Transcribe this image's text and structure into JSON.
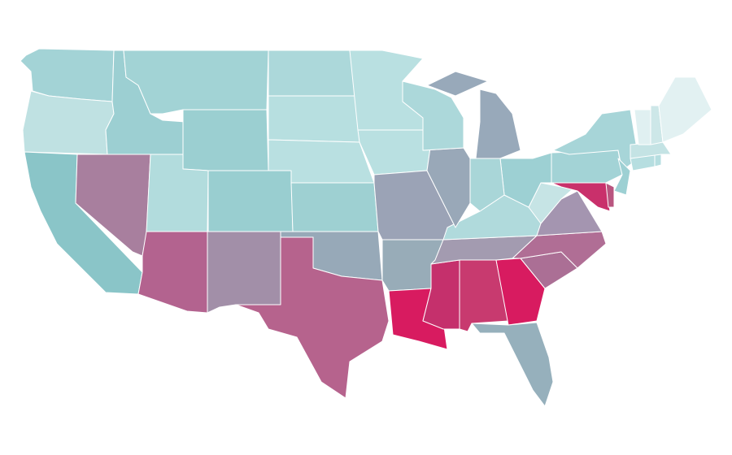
{
  "map": {
    "regions": [
      {
        "color": "#a3d3d6"
      },
      {
        "color": "#bfe1e2"
      },
      {
        "color": "#8ac5c8"
      },
      {
        "color": "#a87f9e"
      },
      {
        "color": "#9ccfd2"
      },
      {
        "color": "#a2d3d5"
      },
      {
        "color": "#9bcfd1"
      },
      {
        "color": "#b2dcdd"
      },
      {
        "color": "#b3638f"
      },
      {
        "color": "#99ced0"
      },
      {
        "color": "#a28fa8"
      },
      {
        "color": "#acd8da"
      },
      {
        "color": "#b7dfe0"
      },
      {
        "color": "#b9e0e1"
      },
      {
        "color": "#9ed0d2"
      },
      {
        "color": "#97a9b8"
      },
      {
        "color": "#b6638d"
      },
      {
        "color": "#b9e0e1"
      },
      {
        "color": "#b9e0e1"
      },
      {
        "color": "#9ba3b6"
      },
      {
        "color": "#98acb8"
      },
      {
        "color": "#d81b60"
      },
      {
        "color": "#c5306c"
      },
      {
        "color": "#c83a6f"
      },
      {
        "color": "#d81b60"
      },
      {
        "color": "#96b0bc"
      },
      {
        "color": "#ab6f95"
      },
      {
        "color": "#b06e95"
      },
      {
        "color": "#a39bb0"
      },
      {
        "color": "#b0dadc"
      },
      {
        "color": "#a495b0"
      },
      {
        "color": "#c6e4e5"
      },
      {
        "color": "#9dd0d3"
      },
      {
        "color": "#a9d6d8"
      },
      {
        "color": "#99a8b8"
      },
      {
        "color": "#acd8da"
      },
      {
        "color": "#98a9ba"
      },
      {
        "color": "#a3d3d6"
      },
      {
        "color": "#a7d5d8"
      },
      {
        "color": "#9dd0d3"
      },
      {
        "color": "#c9306b"
      },
      {
        "color": "#b9557f"
      },
      {
        "color": "#b6dee0"
      },
      {
        "color": "#b6dee0"
      },
      {
        "color": "#c4e3e4"
      },
      {
        "color": "#e0f0f1"
      },
      {
        "color": "#cde7e8"
      },
      {
        "color": "#e2f1f2"
      }
    ]
  }
}
